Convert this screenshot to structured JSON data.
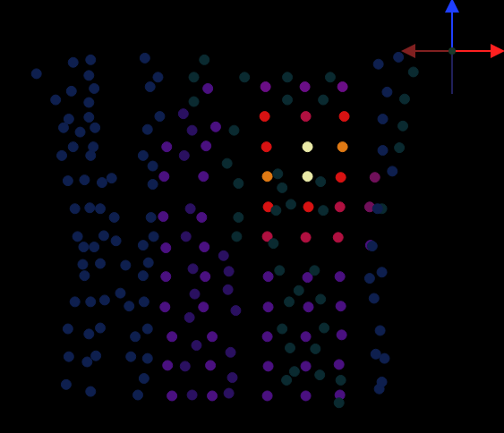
{
  "chart_data": {
    "type": "scatter",
    "xlim": [
      0,
      563
    ],
    "ylim": [
      484,
      0
    ],
    "grid": false,
    "tick_labels": false,
    "series": [
      {
        "color": "#0e1f4e",
        "x": [
          35,
          77,
          97,
          95,
          75,
          101,
          57,
          95,
          72,
          95,
          66,
          85,
          102,
          77,
          100,
          64,
          97,
          71,
          90,
          110,
          121,
          79,
          96,
          108,
          124,
          82,
          112,
          126,
          89,
          101,
          88,
          108,
          137,
          90,
          79,
          97,
          113,
          131,
          71,
          95,
          108,
          72,
          93,
          103,
          69,
          97,
          159,
          174,
          165,
          176,
          162,
          157,
          168,
          168,
          166,
          169,
          157,
          163,
          157,
          141,
          158,
          148,
          162,
          143,
          162,
          151,
          158,
          426,
          449,
          436,
          431,
          431,
          442,
          425,
          419,
          430,
          416,
          421,
          428,
          423,
          433,
          427,
          430
        ],
        "y": [
          78,
          65,
          62,
          80,
          98,
          95,
          108,
          111,
          130,
          128,
          140,
          145,
          140,
          162,
          162,
          172,
          172,
          201,
          200,
          203,
          198,
          233,
          232,
          233,
          243,
          265,
          264,
          270,
          277,
          277,
          297,
          296,
          298,
          310,
          340,
          340,
          338,
          330,
          371,
          377,
          370,
          403,
          409,
          402,
          435,
          443,
          60,
          82,
          93,
          127,
          142,
          172,
          184,
          205,
          243,
          265,
          275,
          295,
          310,
          345,
          340,
          380,
          371,
          403,
          405,
          447,
          428,
          67,
          59,
          99,
          130,
          166,
          190,
          233,
          276,
          306,
          313,
          336,
          373,
          400,
          405,
          440,
          432
        ]
      },
      {
        "color": "#0a2a30",
        "x": [
          273,
          322,
          371,
          363,
          322,
          311,
          316,
          360,
          363,
          309,
          326,
          306,
          353,
          313,
          335,
          360,
          324,
          316,
          364,
          325,
          354,
          330,
          359,
          321,
          383,
          381,
          466,
          456,
          454,
          450,
          430,
          227,
          215,
          215,
          261,
          253,
          266,
          266,
          264
        ],
        "y": [
          82,
          82,
          82,
          108,
          108,
          193,
          209,
          202,
          235,
          235,
          228,
          273,
          304,
          304,
          327,
          337,
          340,
          371,
          370,
          393,
          394,
          420,
          424,
          430,
          430,
          456,
          76,
          107,
          138,
          163,
          233,
          62,
          82,
          110,
          143,
          181,
          204,
          243,
          265
        ]
      },
      {
        "color": "#2a1060",
        "x": [
          203,
          213,
          204,
          211,
          206,
          249,
          214,
          255,
          216,
          254,
          210,
          263,
          218,
          257,
          205,
          259,
          213,
          255
        ],
        "y": [
          124,
          143,
          172,
          233,
          265,
          287,
          302,
          305,
          331,
          326,
          358,
          350,
          390,
          398,
          414,
          427,
          447,
          445
        ]
      },
      {
        "color": "#4a1080",
        "x": [
          184,
          229,
          181,
          226,
          180,
          224,
          183,
          227,
          183,
          228,
          182,
          226,
          190,
          236,
          185,
          234,
          190,
          236,
          240,
          231,
          300,
          345,
          382,
          300,
          346,
          383,
          299,
          343,
          384,
          300,
          343,
          381,
          299,
          343,
          382,
          417
        ],
        "y": [
          162,
          161,
          196,
          196,
          242,
          243,
          278,
          277,
          311,
          311,
          346,
          346,
          380,
          380,
          413,
          413,
          448,
          448,
          139,
          95,
          311,
          312,
          311,
          346,
          346,
          345,
          380,
          380,
          378,
          414,
          414,
          412,
          448,
          448,
          447,
          275
        ]
      },
      {
        "color": "#6a0e86",
        "x": [
          297,
          342,
          385
        ],
        "y": [
          93,
          93,
          93
        ]
      },
      {
        "color": "#70105a",
        "x": [
          422,
          416
        ],
        "y": [
          197,
          231
        ]
      },
      {
        "color": "#b01040",
        "x": [
          343,
          382,
          299,
          343,
          380
        ],
        "y": [
          127,
          231,
          265,
          266,
          266
        ]
      },
      {
        "color": "#d81212",
        "x": [
          296,
          387,
          298,
          383,
          300,
          346
        ],
        "y": [
          127,
          127,
          162,
          197,
          231,
          231
        ]
      },
      {
        "color": "#e07a14",
        "x": [
          385,
          299
        ],
        "y": [
          162,
          196
        ]
      },
      {
        "color": "#eaeaa8",
        "x": [
          345,
          345
        ],
        "y": [
          162,
          196
        ]
      }
    ]
  }
}
